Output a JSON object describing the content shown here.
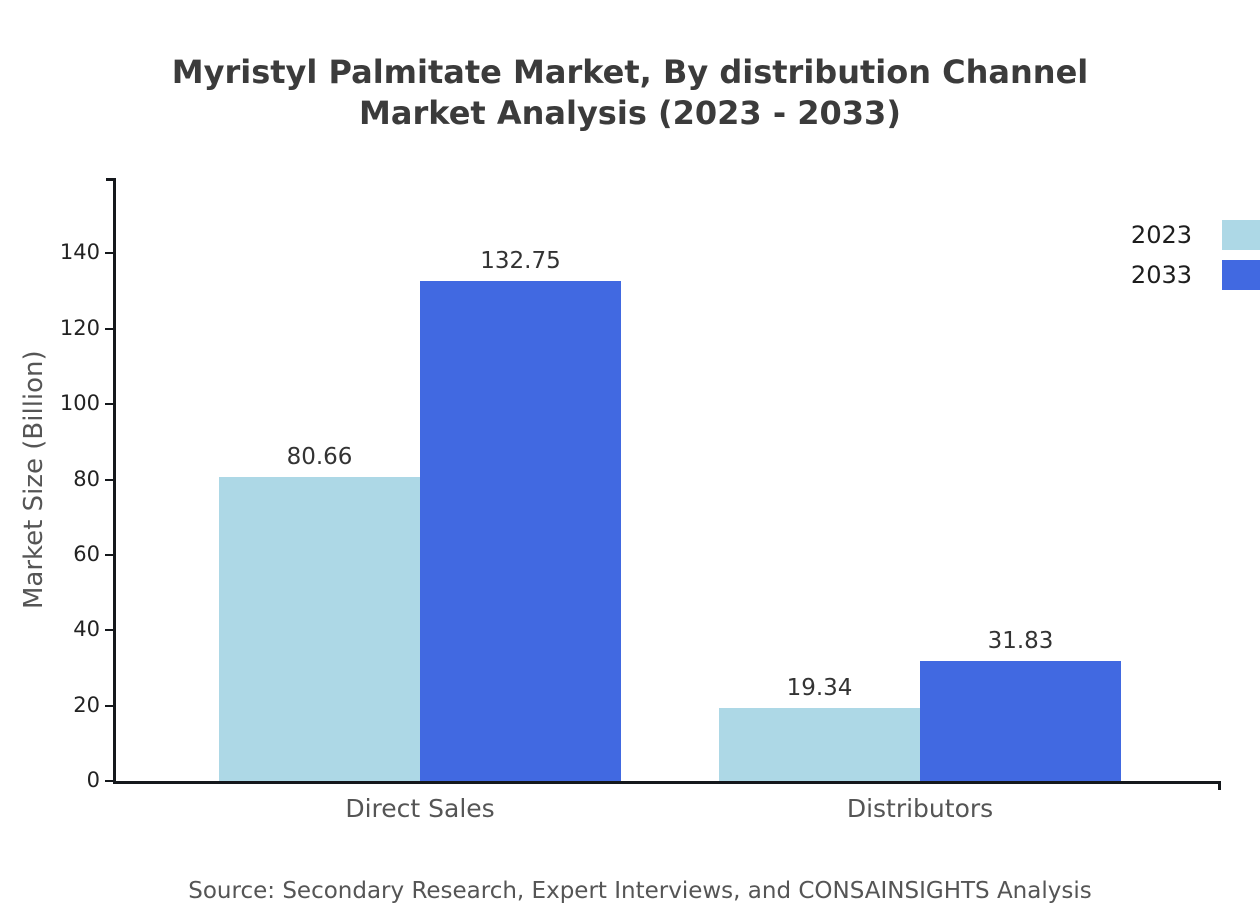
{
  "title": {
    "line1": "Myristyl Palmitate Market, By distribution Channel",
    "line2": "Market Analysis (2023 - 2033)"
  },
  "source": "Source: Secondary Research, Expert Interviews, and CONSAINSIGHTS Analysis",
  "chart_data": {
    "type": "bar",
    "title": "Myristyl Palmitate Market, By distribution Channel Market Analysis (2023 - 2033)",
    "categories": [
      "Direct Sales",
      "Distributors"
    ],
    "series": [
      {
        "name": "2023",
        "values": [
          80.66,
          19.34
        ],
        "color": "#ADD8E6"
      },
      {
        "name": "2033",
        "values": [
          132.75,
          31.83
        ],
        "color": "#4169E1"
      }
    ],
    "xlabel": "",
    "ylabel": "Market Size (Billion)",
    "ylim": [
      0,
      160
    ],
    "yticks": [
      0,
      20,
      40,
      60,
      80,
      100,
      120,
      140
    ],
    "grid": false,
    "legend_position": "top-right",
    "value_label_decimals": 2
  }
}
